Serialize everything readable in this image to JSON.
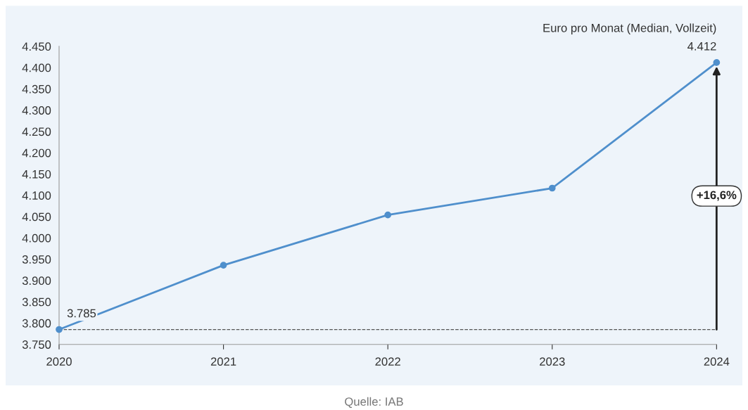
{
  "chart_data": {
    "type": "line",
    "ylabel": "Euro pro Monat (Median, Vollzeit)",
    "categories": [
      "2020",
      "2021",
      "2022",
      "2023",
      "2024"
    ],
    "series": [
      {
        "color": "#4f8fcc",
        "values": [
          3785,
          3936,
          4054,
          4117,
          4412
        ],
        "value_labels": [
          "3.785",
          null,
          null,
          null,
          "4.412"
        ]
      }
    ],
    "ylim": [
      3750,
      4450
    ],
    "yticks": [
      {
        "value": 3750,
        "label": "3.750"
      },
      {
        "value": 3800,
        "label": "3.800"
      },
      {
        "value": 3850,
        "label": "3.850"
      },
      {
        "value": 3900,
        "label": "3.900"
      },
      {
        "value": 3950,
        "label": "3.950"
      },
      {
        "value": 4000,
        "label": "4.000"
      },
      {
        "value": 4050,
        "label": "4.050"
      },
      {
        "value": 4100,
        "label": "4.100"
      },
      {
        "value": 4150,
        "label": "4.150"
      },
      {
        "value": 4200,
        "label": "4.200"
      },
      {
        "value": 4250,
        "label": "4.250"
      },
      {
        "value": 4300,
        "label": "4.300"
      },
      {
        "value": 4350,
        "label": "4.350"
      },
      {
        "value": 4400,
        "label": "4.400"
      },
      {
        "value": 4450,
        "label": "4.450"
      }
    ],
    "ref_lines": [
      {
        "axis": "y",
        "value": 3785,
        "color": "#555555",
        "line_style": "dashed"
      }
    ],
    "annotations": [
      "+16,6%",
      "Quelle: IAB"
    ],
    "marker": "circle",
    "line_style": "solid",
    "grid": false,
    "legend": false
  }
}
